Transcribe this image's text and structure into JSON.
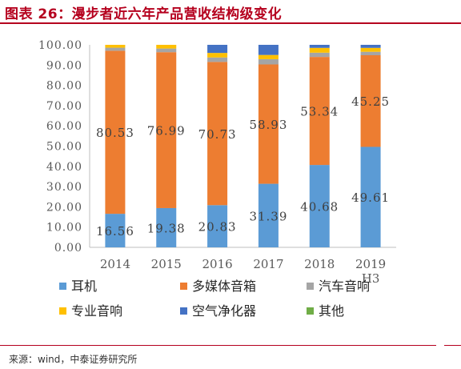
{
  "title": "图表 26：漫步者近六年产品营收结构级变化",
  "source": "来源：wind，中泰证券研究所",
  "colors": {
    "title": "#b5001e",
    "rule": "#b5001e",
    "axis_text": "#595959",
    "label_text": "#404040"
  },
  "chart_data": {
    "type": "bar",
    "stacked": true,
    "categories": [
      "2014",
      "2015",
      "2016",
      "2017",
      "2018",
      "2019H3"
    ],
    "category_labels": [
      [
        "2014"
      ],
      [
        "2015"
      ],
      [
        "2016"
      ],
      [
        "2017"
      ],
      [
        "2018"
      ],
      [
        "2019",
        "H3"
      ]
    ],
    "ylim": [
      0,
      100
    ],
    "yticks": [
      "0.00",
      "10.00",
      "20.00",
      "30.00",
      "40.00",
      "50.00",
      "60.00",
      "70.00",
      "80.00",
      "90.00",
      "100.00"
    ],
    "grid": false,
    "legend_position": "bottom",
    "series": [
      {
        "name": "耳机",
        "color": "#5b9bd5",
        "values": [
          16.56,
          19.38,
          20.83,
          31.39,
          40.68,
          49.61
        ],
        "labels": [
          "16.56",
          "19.38",
          "20.83",
          "31.39",
          "40.68",
          "49.61"
        ]
      },
      {
        "name": "多媒体音箱",
        "color": "#ed7d31",
        "values": [
          80.53,
          76.99,
          70.73,
          58.93,
          53.34,
          45.25
        ],
        "labels": [
          "80.53",
          "76.99",
          "70.73",
          "58.93",
          "53.34",
          "45.25"
        ]
      },
      {
        "name": "汽车音响",
        "color": "#a5a5a5",
        "values": [
          1.5,
          1.8,
          2.2,
          2.6,
          2.1,
          1.7
        ]
      },
      {
        "name": "专业音响",
        "color": "#ffc000",
        "values": [
          1.41,
          1.83,
          2.24,
          2.08,
          2.38,
          1.94
        ]
      },
      {
        "name": "空气净化器",
        "color": "#4472c4",
        "values": [
          0.0,
          0.0,
          4.0,
          5.0,
          1.5,
          1.5
        ]
      },
      {
        "name": "其他",
        "color": "#70ad47",
        "values": [
          0.0,
          0.0,
          0.0,
          0.0,
          0.0,
          0.0
        ]
      }
    ]
  }
}
